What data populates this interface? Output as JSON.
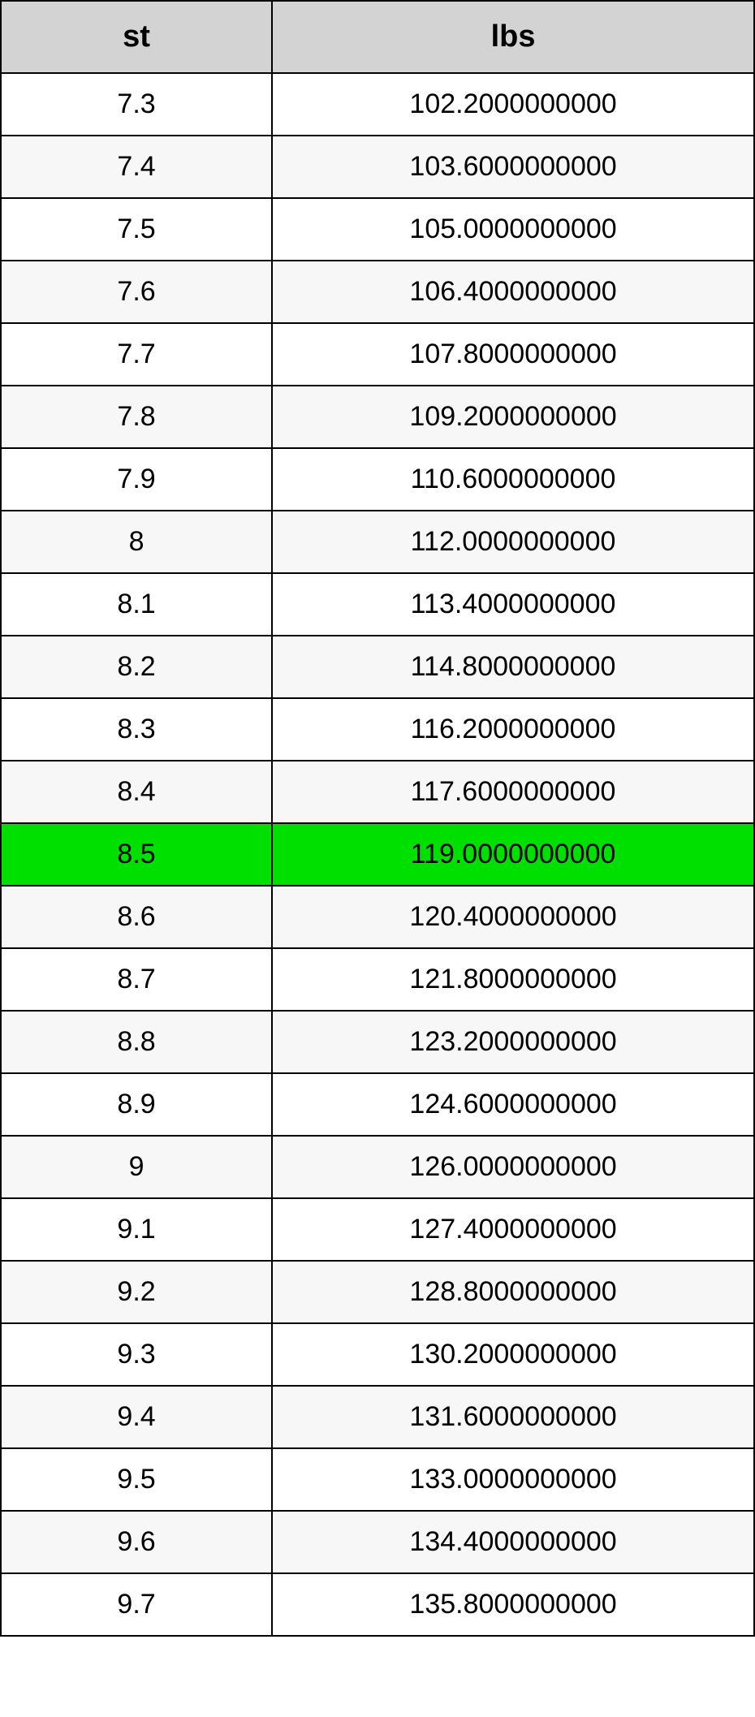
{
  "table": {
    "columns": [
      "st",
      "lbs"
    ],
    "header_bg": "#d3d3d3",
    "header_fontsize": 38,
    "header_fontweight": "bold",
    "cell_fontsize": 34,
    "border_color": "#000000",
    "border_width": 2,
    "row_bg_odd": "#ffffff",
    "row_bg_even": "#f7f7f7",
    "highlight_bg": "#00e000",
    "col_widths_pct": [
      36,
      64
    ],
    "rows": [
      {
        "st": "7.3",
        "lbs": "102.2000000000",
        "highlight": false
      },
      {
        "st": "7.4",
        "lbs": "103.6000000000",
        "highlight": false
      },
      {
        "st": "7.5",
        "lbs": "105.0000000000",
        "highlight": false
      },
      {
        "st": "7.6",
        "lbs": "106.4000000000",
        "highlight": false
      },
      {
        "st": "7.7",
        "lbs": "107.8000000000",
        "highlight": false
      },
      {
        "st": "7.8",
        "lbs": "109.2000000000",
        "highlight": false
      },
      {
        "st": "7.9",
        "lbs": "110.6000000000",
        "highlight": false
      },
      {
        "st": "8",
        "lbs": "112.0000000000",
        "highlight": false
      },
      {
        "st": "8.1",
        "lbs": "113.4000000000",
        "highlight": false
      },
      {
        "st": "8.2",
        "lbs": "114.8000000000",
        "highlight": false
      },
      {
        "st": "8.3",
        "lbs": "116.2000000000",
        "highlight": false
      },
      {
        "st": "8.4",
        "lbs": "117.6000000000",
        "highlight": false
      },
      {
        "st": "8.5",
        "lbs": "119.0000000000",
        "highlight": true
      },
      {
        "st": "8.6",
        "lbs": "120.4000000000",
        "highlight": false
      },
      {
        "st": "8.7",
        "lbs": "121.8000000000",
        "highlight": false
      },
      {
        "st": "8.8",
        "lbs": "123.2000000000",
        "highlight": false
      },
      {
        "st": "8.9",
        "lbs": "124.6000000000",
        "highlight": false
      },
      {
        "st": "9",
        "lbs": "126.0000000000",
        "highlight": false
      },
      {
        "st": "9.1",
        "lbs": "127.4000000000",
        "highlight": false
      },
      {
        "st": "9.2",
        "lbs": "128.8000000000",
        "highlight": false
      },
      {
        "st": "9.3",
        "lbs": "130.2000000000",
        "highlight": false
      },
      {
        "st": "9.4",
        "lbs": "131.6000000000",
        "highlight": false
      },
      {
        "st": "9.5",
        "lbs": "133.0000000000",
        "highlight": false
      },
      {
        "st": "9.6",
        "lbs": "134.4000000000",
        "highlight": false
      },
      {
        "st": "9.7",
        "lbs": "135.8000000000",
        "highlight": false
      }
    ]
  }
}
